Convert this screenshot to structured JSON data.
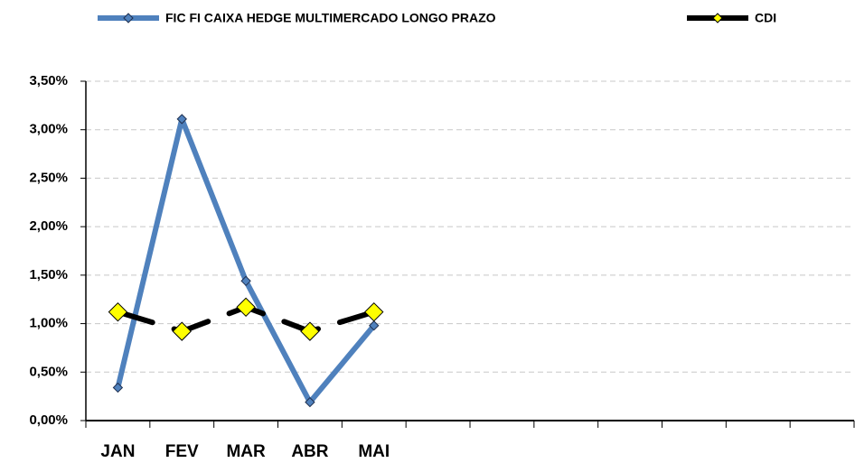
{
  "chart_data": {
    "type": "line",
    "categories": [
      "JAN",
      "FEV",
      "MAR",
      "ABR",
      "MAI",
      null,
      null,
      null,
      null,
      null,
      null,
      null
    ],
    "series": [
      {
        "name": "FIC FI CAIXA HEDGE MULTIMERCADO LONGO PRAZO",
        "color": "#4f81bd",
        "marker_color": "#4f81bd",
        "dashed": false,
        "values": [
          0.34,
          3.11,
          1.44,
          0.19,
          0.98,
          null,
          null,
          null,
          null,
          null,
          null,
          null
        ]
      },
      {
        "name": "CDI",
        "color": "#000000",
        "marker_color": "#ffff00",
        "dashed": true,
        "values": [
          1.12,
          0.92,
          1.17,
          0.92,
          1.12,
          null,
          null,
          null,
          null,
          null,
          null,
          null
        ]
      }
    ],
    "ylim": [
      0,
      3.5
    ],
    "yticks": [
      {
        "value": 0,
        "label": "0,00%"
      },
      {
        "value": 0.5,
        "label": "0,50%"
      },
      {
        "value": 1,
        "label": "1,00%"
      },
      {
        "value": 1.5,
        "label": "1,50%"
      },
      {
        "value": 2,
        "label": "2,00%"
      },
      {
        "value": 2.5,
        "label": "2,50%"
      },
      {
        "value": 3,
        "label": "3,00%"
      },
      {
        "value": 3.5,
        "label": "3,50%"
      }
    ],
    "grid": true,
    "legend": "top"
  }
}
